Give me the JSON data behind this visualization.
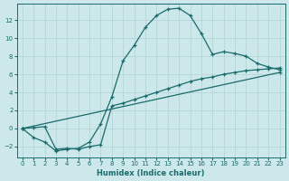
{
  "xlabel": "Humidex (Indice chaleur)",
  "bg_color": "#cce8ea",
  "line_color": "#1a6b6b",
  "grid_color": "#b8d8da",
  "xlim": [
    -0.5,
    23.5
  ],
  "ylim": [
    -3.2,
    13.8
  ],
  "xticks": [
    0,
    1,
    2,
    3,
    4,
    5,
    6,
    7,
    8,
    9,
    10,
    11,
    12,
    13,
    14,
    15,
    16,
    17,
    18,
    19,
    20,
    21,
    22,
    23
  ],
  "yticks": [
    -2,
    0,
    2,
    4,
    6,
    8,
    10,
    12
  ],
  "line1_x": [
    0,
    1,
    2,
    3,
    4,
    5,
    6,
    7,
    8,
    9,
    10,
    11,
    12,
    13,
    14,
    15,
    16,
    17,
    18,
    19,
    20,
    21,
    22,
    23
  ],
  "line1_y": [
    0.0,
    -1.0,
    -1.5,
    -2.5,
    -2.3,
    -2.2,
    -1.5,
    0.5,
    3.5,
    7.5,
    9.2,
    11.2,
    12.5,
    13.2,
    13.3,
    12.5,
    10.5,
    8.2,
    8.5,
    8.3,
    8.0,
    7.2,
    6.8,
    6.5
  ],
  "line2_x": [
    0,
    1,
    2,
    3,
    4,
    5,
    6,
    7,
    8,
    9,
    10,
    11,
    12,
    13,
    14,
    15,
    16,
    17,
    18,
    19,
    20,
    21,
    22,
    23
  ],
  "line2_y": [
    0.0,
    0.1,
    0.2,
    -2.3,
    -2.2,
    -2.3,
    -2.0,
    -1.8,
    2.5,
    2.8,
    3.2,
    3.6,
    4.0,
    4.4,
    4.8,
    5.2,
    5.5,
    5.7,
    6.0,
    6.2,
    6.4,
    6.5,
    6.6,
    6.7
  ],
  "line3_x": [
    0,
    23
  ],
  "line3_y": [
    0.0,
    6.2
  ]
}
